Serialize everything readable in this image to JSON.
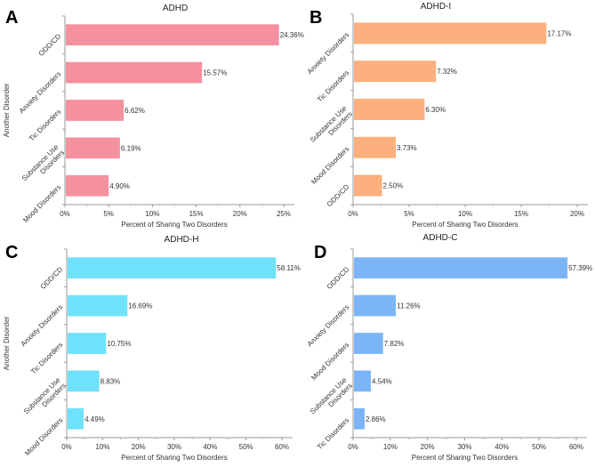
{
  "chart_data": [
    {
      "type": "bar",
      "orientation": "horizontal",
      "panel_label": "A",
      "title": "ADHD",
      "xlabel": "Percent of Sharing Two Disorders",
      "ylabel": "Another Disorder",
      "categories": [
        "ODD/CD",
        "Anxiety Disorders",
        "Tic Disorders",
        "Substance Use Disorders",
        "Mood Disorders"
      ],
      "values": [
        24.36,
        15.57,
        6.62,
        6.19,
        4.9
      ],
      "value_labels": [
        "24.36%",
        "15.57%",
        "6.62%",
        "6.19%",
        "4.90%"
      ],
      "xlim": [
        0,
        25
      ],
      "xticks": [
        "0%",
        "5%",
        "10%",
        "15%",
        "20%",
        "25%"
      ],
      "color": "#f5919f"
    },
    {
      "type": "bar",
      "orientation": "horizontal",
      "panel_label": "B",
      "title": "ADHD-I",
      "xlabel": "Percent of Sharing Two Disorders",
      "ylabel": "",
      "categories": [
        "Anxiety Disorders",
        "Tic Disorders",
        "Substance Use Disorders",
        "Mood Disorders",
        "ODD/CD"
      ],
      "values": [
        17.17,
        7.32,
        6.3,
        3.73,
        2.5
      ],
      "value_labels": [
        "17.17%",
        "7.32%",
        "6.30%",
        "3.73%",
        "2.50%"
      ],
      "xlim": [
        0,
        20
      ],
      "xticks": [
        "0%",
        "5%",
        "10%",
        "15%",
        "20%"
      ],
      "color": "#fcb07d"
    },
    {
      "type": "bar",
      "orientation": "horizontal",
      "panel_label": "C",
      "title": "ADHD-H",
      "xlabel": "Percent of Sharing Two Disorders",
      "ylabel": "Another Disorder",
      "categories": [
        "ODD/CD",
        "Anxiety Disorders",
        "Tic Disorders",
        "Substance Use Disorders",
        "Mood Disorders"
      ],
      "values": [
        58.11,
        16.69,
        10.75,
        8.83,
        4.49
      ],
      "value_labels": [
        "58.11%",
        "16.69%",
        "10.75%",
        "8.83%",
        "4.49%"
      ],
      "xlim": [
        0,
        60
      ],
      "xticks": [
        "0%",
        "10%",
        "20%",
        "30%",
        "40%",
        "50%",
        "60%"
      ],
      "color": "#70e1fb"
    },
    {
      "type": "bar",
      "orientation": "horizontal",
      "panel_label": "D",
      "title": "ADHD-C",
      "xlabel": "Percent of Sharing Two Disorders",
      "ylabel": "",
      "categories": [
        "ODD/CD",
        "Anxiety Disorders",
        "Mood Disorders",
        "Substance Use Disorders",
        "Tic Disorders"
      ],
      "values": [
        57.39,
        11.26,
        7.82,
        4.54,
        2.86
      ],
      "value_labels": [
        "57.39%",
        "11.26%",
        "7.82%",
        "4.54%",
        "2.86%"
      ],
      "xlim": [
        0,
        60
      ],
      "xticks": [
        "0%",
        "10%",
        "20%",
        "30%",
        "40%",
        "50%",
        "60%"
      ],
      "color": "#7bb5f8"
    }
  ]
}
